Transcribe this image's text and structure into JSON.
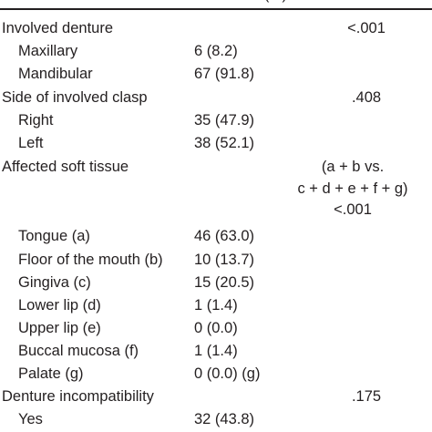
{
  "header": {
    "col2": "(%)",
    "col3": ""
  },
  "rows": [
    {
      "label": "Involved denture",
      "value": "",
      "p": "<.001"
    },
    {
      "label": "Maxillary",
      "value": "6 (8.2)",
      "p": ""
    },
    {
      "label": "Mandibular",
      "value": "67 (91.8)",
      "p": ""
    },
    {
      "label": "Side of involved clasp",
      "value": "",
      "p": ".408"
    },
    {
      "label": "Right",
      "value": "35 (47.9)",
      "p": ""
    },
    {
      "label": "Left",
      "value": "38 (52.1)",
      "p": ""
    },
    {
      "label": "Affected soft tissue",
      "value": "",
      "p": "(a + b vs."
    },
    {
      "label": "",
      "value": "",
      "p": "c + d + e + f + g)"
    },
    {
      "label": "",
      "value": "",
      "p": "<.001"
    },
    {
      "label": "Tongue (a)",
      "value": "46 (63.0)",
      "p": ""
    },
    {
      "label": "Floor of the mouth (b)",
      "value": "10 (13.7)",
      "p": ""
    },
    {
      "label": "Gingiva (c)",
      "value": "15 (20.5)",
      "p": ""
    },
    {
      "label": "Lower lip (d)",
      "value": "1 (1.4)",
      "p": ""
    },
    {
      "label": "Upper lip (e)",
      "value": "0 (0.0)",
      "p": ""
    },
    {
      "label": "Buccal mucosa (f)",
      "value": "1 (1.4)",
      "p": ""
    },
    {
      "label": "Palate (g)",
      "value": "0 (0.0) (g)",
      "p": ""
    },
    {
      "label": "Denture incompatibility",
      "value": "",
      "p": ".175"
    },
    {
      "label": "Yes",
      "value": "32 (43.8)",
      "p": ""
    }
  ]
}
